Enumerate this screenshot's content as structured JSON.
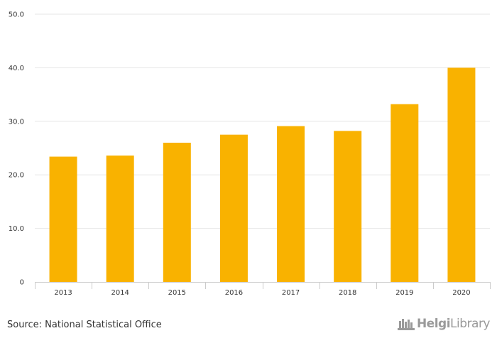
{
  "chart_data": {
    "type": "bar",
    "categories": [
      "2013",
      "2014",
      "2015",
      "2016",
      "2017",
      "2018",
      "2019",
      "2020"
    ],
    "values": [
      23.4,
      23.6,
      26.0,
      27.5,
      29.1,
      28.2,
      33.2,
      40.0
    ],
    "ylim": [
      0,
      50
    ],
    "yticks": [
      0,
      10,
      20,
      30,
      40,
      50
    ],
    "ytick_labels": [
      "0",
      "10.0",
      "20.0",
      "30.0",
      "40.0",
      "50.0"
    ],
    "title": "",
    "xlabel": "",
    "ylabel": "",
    "grid": true,
    "bar_color": "#f9b200"
  },
  "source": "Source: National Statistical Office",
  "logo": {
    "part1": "Helgi",
    "part2": "Library"
  }
}
